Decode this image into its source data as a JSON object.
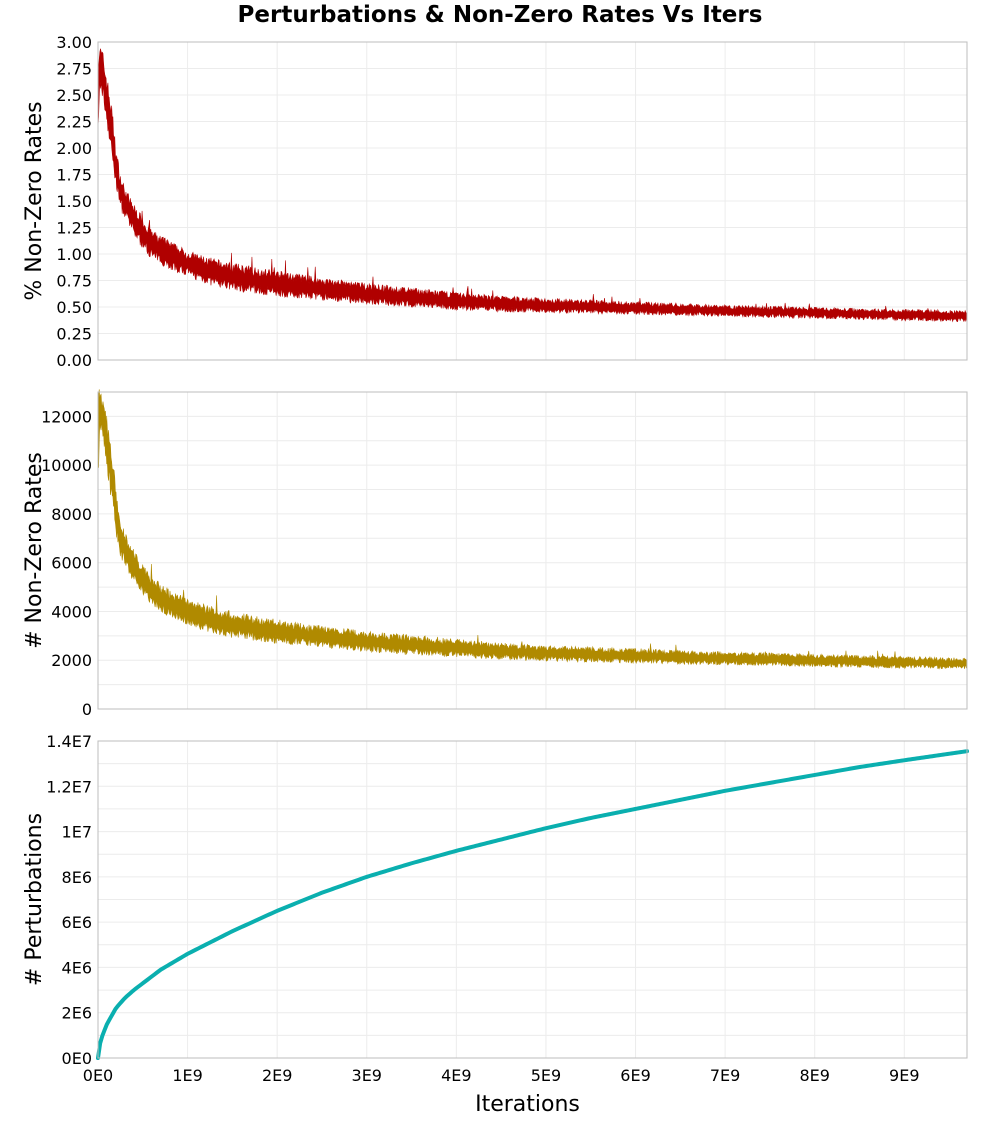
{
  "figure": {
    "title": "Perturbations & Non-Zero Rates Vs Iters",
    "colors": {
      "frame": "#bdbdbd",
      "grid": "#ececec",
      "text": "#000000"
    }
  },
  "chart_data": [
    {
      "type": "area",
      "ylabel": "% Non-Zero Rates",
      "xlabel": "",
      "xlim": [
        0,
        9700000000.0
      ],
      "ylim": [
        0,
        3.0
      ],
      "yticks": [
        0,
        0.25,
        0.5,
        0.75,
        1.0,
        1.25,
        1.5,
        1.75,
        2.0,
        2.25,
        2.5,
        2.75,
        3.0
      ],
      "ytick_labels": [
        "0.00",
        "0.25",
        "0.50",
        "0.75",
        "1.00",
        "1.25",
        "1.50",
        "1.75",
        "2.00",
        "2.25",
        "2.50",
        "2.75",
        "3.00"
      ],
      "color": "#b00000",
      "grid": true,
      "series": [
        {
          "x": [
            0,
            20000000.0,
            50000000.0,
            100000000.0,
            150000000.0,
            200000000.0,
            250000000.0,
            300000000.0,
            400000000.0,
            500000000.0,
            600000000.0,
            800000000.0,
            1000000000.0,
            1250000000.0,
            1500000000.0,
            2000000000.0,
            2500000000.0,
            3000000000.0,
            3500000000.0,
            4000000000.0,
            4500000000.0,
            5000000000.0,
            6000000000.0,
            7000000000.0,
            8000000000.0,
            9000000000.0,
            9700000000.0
          ],
          "low": [
            2.0,
            2.62,
            2.55,
            2.3,
            2.0,
            1.7,
            1.48,
            1.38,
            1.22,
            1.1,
            1.0,
            0.9,
            0.83,
            0.75,
            0.7,
            0.64,
            0.6,
            0.56,
            0.53,
            0.5,
            0.48,
            0.47,
            0.45,
            0.43,
            0.41,
            0.39,
            0.38
          ],
          "high": [
            2.85,
            2.9,
            2.85,
            2.6,
            2.35,
            1.95,
            1.7,
            1.58,
            1.42,
            1.3,
            1.18,
            1.08,
            0.99,
            0.92,
            0.87,
            0.8,
            0.74,
            0.69,
            0.65,
            0.61,
            0.58,
            0.56,
            0.53,
            0.5,
            0.48,
            0.46,
            0.45
          ]
        }
      ]
    },
    {
      "type": "area",
      "ylabel": "# Non-Zero Rates",
      "xlabel": "",
      "xlim": [
        0,
        9700000000.0
      ],
      "ylim": [
        0,
        13000
      ],
      "yticks": [
        0,
        2000,
        4000,
        6000,
        8000,
        10000,
        12000
      ],
      "ytick_labels": [
        "0",
        "2000",
        "4000",
        "6000",
        "8000",
        "10000",
        "12000"
      ],
      "color": "#b08a00",
      "grid": true,
      "series": [
        {
          "x": [
            0,
            20000000.0,
            50000000.0,
            100000000.0,
            150000000.0,
            200000000.0,
            250000000.0,
            300000000.0,
            400000000.0,
            500000000.0,
            600000000.0,
            800000000.0,
            1000000000.0,
            1250000000.0,
            1500000000.0,
            2000000000.0,
            2500000000.0,
            3000000000.0,
            3500000000.0,
            4000000000.0,
            4500000000.0,
            5000000000.0,
            6000000000.0,
            7000000000.0,
            8000000000.0,
            9000000000.0,
            9700000000.0
          ],
          "low": [
            9000,
            11800,
            11400,
            10200,
            8900,
            7500,
            6500,
            6100,
            5400,
            4900,
            4450,
            3950,
            3650,
            3300,
            3100,
            2850,
            2650,
            2500,
            2350,
            2250,
            2150,
            2080,
            1980,
            1900,
            1820,
            1750,
            1720
          ],
          "high": [
            12800,
            12900,
            12600,
            11600,
            10500,
            8700,
            7500,
            7000,
            6300,
            5700,
            5200,
            4700,
            4350,
            4050,
            3800,
            3500,
            3250,
            3050,
            2900,
            2750,
            2600,
            2500,
            2380,
            2250,
            2160,
            2080,
            2020
          ]
        }
      ]
    },
    {
      "type": "line",
      "ylabel": "# Perturbations",
      "xlabel": "Iterations",
      "xlim": [
        0,
        9700000000.0
      ],
      "ylim": [
        0,
        14000000.0
      ],
      "yticks": [
        0,
        2000000.0,
        4000000.0,
        6000000.0,
        8000000.0,
        10000000.0,
        12000000.0,
        14000000.0
      ],
      "ytick_labels": [
        "0E0",
        "2E6",
        "4E6",
        "6E6",
        "8E6",
        "1E7",
        "1.2E7",
        "1.4E7"
      ],
      "xticks": [
        0,
        1000000000.0,
        2000000000.0,
        3000000000.0,
        4000000000.0,
        5000000000.0,
        6000000000.0,
        7000000000.0,
        8000000000.0,
        9000000000.0
      ],
      "xtick_labels": [
        "0E0",
        "1E9",
        "2E9",
        "3E9",
        "4E9",
        "5E9",
        "6E9",
        "7E9",
        "8E9",
        "9E9"
      ],
      "color": "#0aafaf",
      "grid": true,
      "series": [
        {
          "x": [
            0,
            20000000.0,
            50000000.0,
            100000000.0,
            200000000.0,
            300000000.0,
            400000000.0,
            500000000.0,
            700000000.0,
            1000000000.0,
            1500000000.0,
            2000000000.0,
            2500000000.0,
            3000000000.0,
            3500000000.0,
            4000000000.0,
            4500000000.0,
            5000000000.0,
            5500000000.0,
            6000000000.0,
            6500000000.0,
            7000000000.0,
            7500000000.0,
            8000000000.0,
            8500000000.0,
            9000000000.0,
            9700000000.0
          ],
          "y": [
            0,
            600000,
            1000000,
            1500000,
            2200000,
            2650000,
            3000000,
            3300000,
            3900000,
            4600000,
            5600000,
            6500000,
            7300000,
            8000000,
            8600000,
            9150000,
            9650000,
            10150000,
            10600000,
            11000000,
            11400000,
            11800000,
            12150000,
            12500000,
            12850000,
            13150000,
            13550000
          ]
        }
      ]
    }
  ]
}
